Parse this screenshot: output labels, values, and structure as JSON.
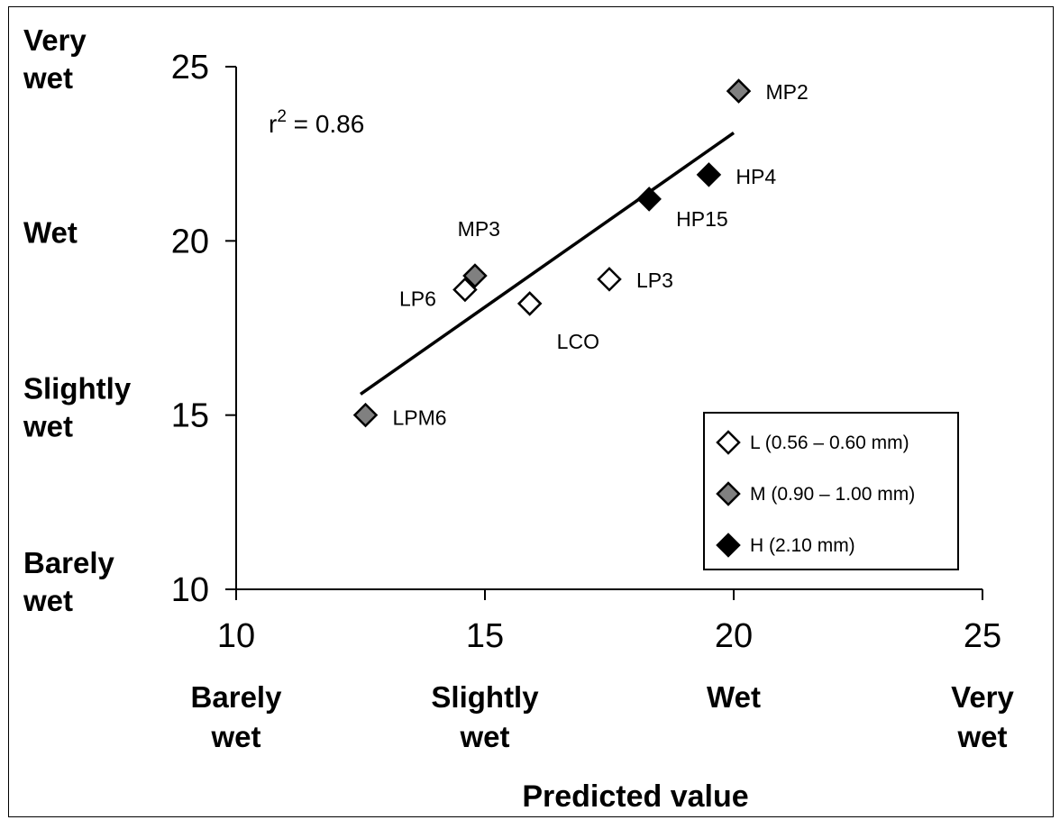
{
  "chart_data": {
    "type": "scatter",
    "title": "",
    "xlabel": "Predicted value",
    "ylabel": "",
    "xlim": [
      10,
      25
    ],
    "ylim": [
      10,
      25
    ],
    "x_ticks": [
      "10",
      "15",
      "20",
      "25"
    ],
    "y_ticks": [
      "10",
      "15",
      "20",
      "25"
    ],
    "x_categories": [
      {
        "at": 10,
        "lines": [
          "Barely",
          "wet"
        ]
      },
      {
        "at": 15,
        "lines": [
          "Slightly",
          "wet"
        ]
      },
      {
        "at": 20,
        "lines": [
          "Wet"
        ]
      },
      {
        "at": 25,
        "lines": [
          "Very",
          "wet"
        ]
      }
    ],
    "y_categories": [
      {
        "at": 10,
        "lines": [
          "Barely",
          "wet"
        ]
      },
      {
        "at": 15,
        "lines": [
          "Slightly",
          "wet"
        ]
      },
      {
        "at": 20,
        "lines": [
          "Wet"
        ]
      },
      {
        "at": 25,
        "lines": [
          "Very",
          "wet"
        ]
      }
    ],
    "annotation": {
      "base": "r",
      "sup": "2",
      "rest": " = 0.86"
    },
    "trendline": {
      "x": [
        12.5,
        20.0
      ],
      "y": [
        15.6,
        23.1
      ]
    },
    "grid": false,
    "legend_position": "bottom-right",
    "series": [
      {
        "name": "L (0.56 – 0.60 mm)",
        "color": "#ffffff",
        "points": [
          {
            "label": "LP6",
            "x": 14.6,
            "y": 18.6
          },
          {
            "label": "LCO",
            "x": 15.9,
            "y": 18.2
          },
          {
            "label": "LP3",
            "x": 17.5,
            "y": 18.9
          }
        ]
      },
      {
        "name": "M (0.90 – 1.00 mm)",
        "color": "#808080",
        "points": [
          {
            "label": "MP2",
            "x": 20.1,
            "y": 24.3
          },
          {
            "label": "MP3",
            "x": 14.8,
            "y": 19.0
          },
          {
            "label": "LPM6",
            "x": 12.6,
            "y": 15.0
          }
        ]
      },
      {
        "name": "H (2.10 mm)",
        "color": "#000000",
        "points": [
          {
            "label": "HP4",
            "x": 19.5,
            "y": 21.9
          },
          {
            "label": "HP15",
            "x": 18.3,
            "y": 21.2
          }
        ]
      }
    ]
  }
}
